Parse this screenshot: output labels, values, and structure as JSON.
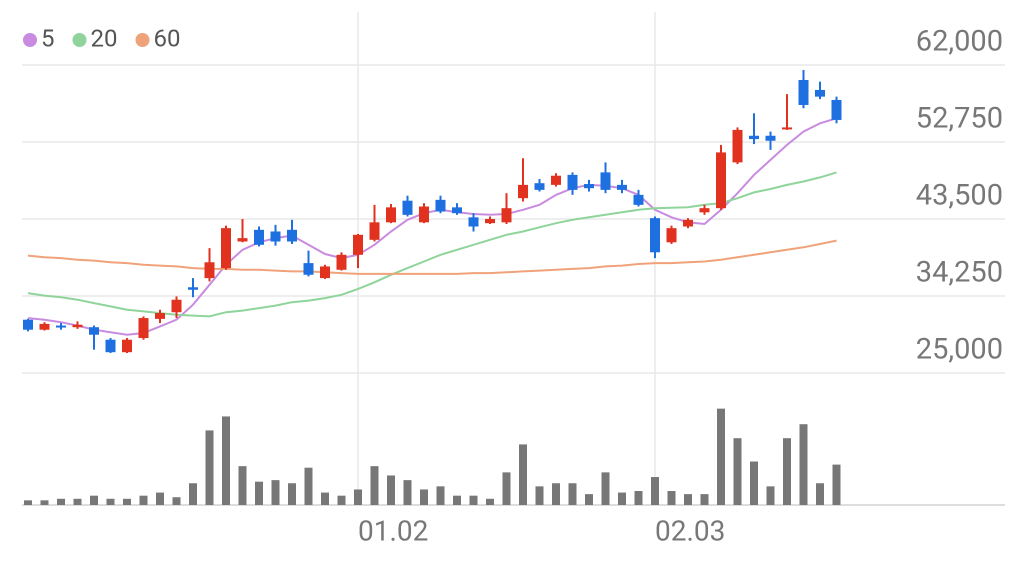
{
  "chart_data": {
    "type": "candlestick",
    "categories": [
      null,
      null,
      null,
      null,
      null,
      null,
      null,
      null,
      null,
      null,
      null,
      null,
      null,
      null,
      null,
      null,
      null,
      null,
      null,
      null,
      "01.02",
      null,
      null,
      null,
      null,
      null,
      null,
      null,
      null,
      null,
      null,
      null,
      null,
      null,
      null,
      null,
      null,
      null,
      "02.03",
      null,
      null,
      null,
      null,
      null,
      null,
      null,
      null,
      null,
      null,
      null
    ],
    "open": [
      31400,
      30200,
      30700,
      30500,
      30500,
      29000,
      27500,
      29200,
      31500,
      32300,
      35300,
      36400,
      37600,
      40800,
      42200,
      42000,
      42200,
      38200,
      36400,
      37400,
      39200,
      41000,
      43100,
      45700,
      43100,
      45800,
      44900,
      43700,
      43000,
      43100,
      46000,
      47800,
      47600,
      48800,
      47700,
      49100,
      47600,
      46400,
      43600,
      40700,
      42600,
      44300,
      44800,
      50300,
      53500,
      53500,
      54300,
      60200,
      59000,
      57800
    ],
    "high": [
      31500,
      31100,
      31000,
      31200,
      30700,
      29200,
      29200,
      31800,
      32600,
      34200,
      36400,
      40000,
      42700,
      43500,
      42600,
      42800,
      43400,
      39700,
      38000,
      39500,
      41700,
      45200,
      45300,
      46300,
      45400,
      46300,
      45400,
      44200,
      43800,
      46600,
      50800,
      48300,
      49000,
      49100,
      48200,
      50300,
      48200,
      47000,
      43800,
      42700,
      43600,
      45200,
      52400,
      54500,
      56200,
      54000,
      58500,
      61400,
      60000,
      58200
    ],
    "low": [
      30000,
      30100,
      30200,
      30300,
      27800,
      27400,
      27400,
      29000,
      31000,
      31600,
      34100,
      36000,
      37400,
      40700,
      40200,
      40300,
      40500,
      36600,
      36300,
      37300,
      37600,
      40800,
      43000,
      43800,
      43000,
      44200,
      44000,
      42000,
      42900,
      42900,
      45600,
      46800,
      47400,
      46400,
      46800,
      46600,
      46600,
      45000,
      38800,
      40500,
      42400,
      44000,
      44600,
      50100,
      52500,
      51800,
      54200,
      56800,
      57900,
      55000
    ],
    "close": [
      30200,
      30900,
      30500,
      30800,
      29600,
      27500,
      29000,
      31600,
      32200,
      33800,
      35000,
      38300,
      42400,
      41200,
      40400,
      40800,
      40800,
      36800,
      37800,
      39200,
      41600,
      43100,
      44900,
      44000,
      45000,
      44400,
      44200,
      42600,
      43500,
      44800,
      47600,
      47000,
      48700,
      47000,
      47200,
      47000,
      47000,
      45200,
      39500,
      42400,
      43400,
      44800,
      51500,
      54200,
      53100,
      52900,
      54500,
      57200,
      58200,
      55400
    ],
    "up_color": "#e0321f",
    "down_color": "#1e6fe0",
    "series": [
      {
        "name": "5",
        "color": "#c98be0",
        "values": [
          31600,
          31400,
          31100,
          30700,
          30200,
          29900,
          29600,
          29800,
          30600,
          31400,
          33200,
          35600,
          38000,
          39800,
          40700,
          41200,
          41500,
          40400,
          39300,
          38800,
          39200,
          40400,
          42000,
          43400,
          44200,
          44600,
          44300,
          44100,
          44000,
          44100,
          44600,
          45200,
          46400,
          47200,
          47600,
          47500,
          47200,
          46400,
          44600,
          43700,
          43100,
          42900,
          44600,
          46600,
          48800,
          50600,
          52400,
          54000,
          55000,
          55600
        ]
      },
      {
        "name": "20",
        "color": "#8fd49a",
        "values": [
          34600,
          34300,
          34100,
          33800,
          33400,
          33000,
          32600,
          32400,
          32200,
          32000,
          31900,
          31800,
          32300,
          32500,
          32800,
          33100,
          33500,
          33700,
          34000,
          34400,
          35100,
          35900,
          36800,
          37600,
          38400,
          39200,
          39800,
          40400,
          41000,
          41600,
          42000,
          42500,
          43000,
          43400,
          43700,
          44000,
          44300,
          44600,
          44800,
          44850,
          44900,
          45200,
          45400,
          46000,
          46700,
          47100,
          47600,
          48000,
          48500,
          49100
        ]
      },
      {
        "name": "60",
        "color": "#f0a27a",
        "values": [
          39100,
          38900,
          38800,
          38600,
          38500,
          38300,
          38200,
          38000,
          37900,
          37800,
          37600,
          37500,
          37500,
          37400,
          37400,
          37300,
          37200,
          37200,
          37100,
          37000,
          36900,
          36900,
          36900,
          36900,
          36900,
          36900,
          36900,
          37000,
          37000,
          37100,
          37200,
          37300,
          37400,
          37500,
          37600,
          37800,
          37900,
          38100,
          38200,
          38200,
          38300,
          38400,
          38600,
          38900,
          39200,
          39500,
          39800,
          40100,
          40500,
          40900
        ]
      }
    ],
    "volume": {
      "color": "#777777",
      "ylim": [
        0,
        65
      ],
      "values": [
        3,
        3,
        4,
        4,
        6,
        4,
        4,
        6,
        8,
        5,
        14,
        48,
        57,
        25,
        15,
        16,
        14,
        24,
        8,
        6,
        10,
        25,
        19,
        16,
        10,
        12,
        6,
        6,
        4,
        21,
        39,
        12,
        14,
        14,
        7,
        21,
        8,
        9,
        18,
        9,
        7,
        7,
        62,
        43,
        28,
        12,
        43,
        52,
        14,
        26
      ]
    },
    "ylim": [
      25000,
      62000
    ],
    "yticks": [
      {
        "value": 25000,
        "label": "25,000"
      },
      {
        "value": 34250,
        "label": "34,250"
      },
      {
        "value": 43500,
        "label": "43,500"
      },
      {
        "value": 52750,
        "label": "52,750"
      },
      {
        "value": 62000,
        "label": "62,000"
      }
    ],
    "grid": true
  }
}
